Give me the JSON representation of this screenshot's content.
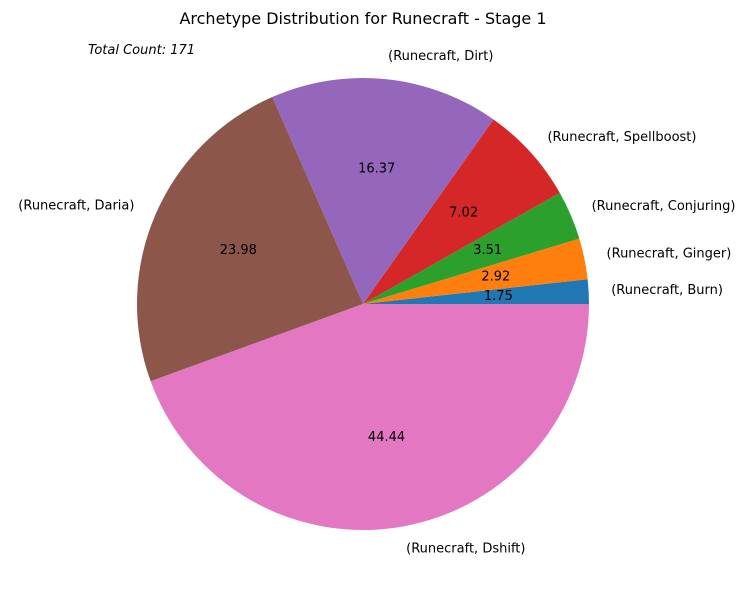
{
  "chart_data": {
    "type": "pie",
    "title": "Archetype Distribution for Runecraft - Stage 1",
    "annotation": "Total Count: 171",
    "start_angle": 0,
    "direction": "counterclockwise",
    "slices": [
      {
        "label": "(Runecraft, Burn)",
        "value": 1.75,
        "value_label": "1.75",
        "color": "#1f77b4"
      },
      {
        "label": "(Runecraft, Ginger)",
        "value": 2.92,
        "value_label": "2.92",
        "color": "#ff7f0e"
      },
      {
        "label": "(Runecraft, Conjuring)",
        "value": 3.51,
        "value_label": "3.51",
        "color": "#2ca02c"
      },
      {
        "label": "(Runecraft, Spellboost)",
        "value": 7.02,
        "value_label": "7.02",
        "color": "#d62728"
      },
      {
        "label": "(Runecraft, Dirt)",
        "value": 16.37,
        "value_label": "16.37",
        "color": "#9467bd"
      },
      {
        "label": "(Runecraft, Daria)",
        "value": 23.98,
        "value_label": "23.98",
        "color": "#8c564b"
      },
      {
        "label": "(Runecraft, Dshift)",
        "value": 44.44,
        "value_label": "44.44",
        "color": "#e377c2"
      }
    ]
  }
}
